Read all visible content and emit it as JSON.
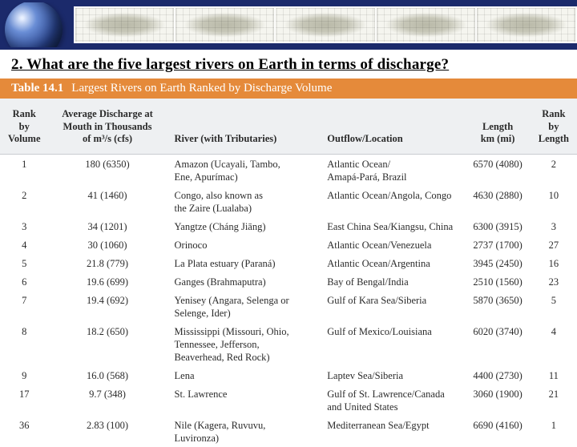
{
  "banner": {
    "map_panels": 5
  },
  "question": "2. What are the five largest rivers on Earth in terms of discharge?",
  "table": {
    "title_number": "Table 14.1",
    "title_text": "Largest Rivers on Earth Ranked by Discharge Volume",
    "title_bg": "#e58a3a",
    "title_color": "#ffffff",
    "header_bg": "#eef0f2",
    "body_bg": "#ffffff",
    "font_size": 12.5,
    "columns": [
      {
        "key": "rank_volume",
        "label": "Rank by\nVolume",
        "class": "c-vol"
      },
      {
        "key": "discharge",
        "label": "Average Discharge at\nMouth in Thousands\nof m³/s (cfs)",
        "class": "c-dis"
      },
      {
        "key": "river",
        "label": "River (with Tributaries)",
        "class": "c-riv"
      },
      {
        "key": "outflow",
        "label": "Outflow/Location",
        "class": "c-out"
      },
      {
        "key": "length",
        "label": "Length\nkm (mi)",
        "class": "c-len"
      },
      {
        "key": "rank_length",
        "label": "Rank by\nLength",
        "class": "c-rlen"
      }
    ],
    "rows": [
      {
        "rank_volume": "1",
        "discharge": "180 (6350)",
        "river": "Amazon (Ucayali, Tambo,\nEne, Apurímac)",
        "outflow": "Atlantic Ocean/\nAmapá-Pará, Brazil",
        "length": "6570 (4080)",
        "rank_length": "2"
      },
      {
        "rank_volume": "2",
        "discharge": "41 (1460)",
        "river": "Congo, also known as\nthe Zaire (Lualaba)",
        "outflow": "Atlantic Ocean/Angola, Congo",
        "length": "4630 (2880)",
        "rank_length": "10"
      },
      {
        "rank_volume": "3",
        "discharge": "34 (1201)",
        "river": "Yangtze (Cháng Jiāng)",
        "outflow": "East China Sea/Kiangsu, China",
        "length": "6300 (3915)",
        "rank_length": "3"
      },
      {
        "rank_volume": "4",
        "discharge": "30 (1060)",
        "river": "Orinoco",
        "outflow": "Atlantic Ocean/Venezuela",
        "length": "2737 (1700)",
        "rank_length": "27"
      },
      {
        "rank_volume": "5",
        "discharge": "21.8 (779)",
        "river": "La Plata estuary (Paraná)",
        "outflow": "Atlantic Ocean/Argentina",
        "length": "3945 (2450)",
        "rank_length": "16"
      },
      {
        "rank_volume": "6",
        "discharge": "19.6 (699)",
        "river": "Ganges (Brahmaputra)",
        "outflow": "Bay of Bengal/India",
        "length": "2510 (1560)",
        "rank_length": "23"
      },
      {
        "rank_volume": "7",
        "discharge": "19.4 (692)",
        "river": "Yenisey (Angara, Selenga or\nSelenge, Ider)",
        "outflow": "Gulf of Kara Sea/Siberia",
        "length": "5870 (3650)",
        "rank_length": "5"
      },
      {
        "rank_volume": "8",
        "discharge": "18.2 (650)",
        "river": "Mississippi (Missouri, Ohio,\nTennessee, Jefferson,\nBeaverhead, Red Rock)",
        "outflow": "Gulf of Mexico/Louisiana",
        "length": "6020 (3740)",
        "rank_length": "4"
      },
      {
        "rank_volume": "9",
        "discharge": "16.0 (568)",
        "river": "Lena",
        "outflow": "Laptev Sea/Siberia",
        "length": "4400 (2730)",
        "rank_length": "11"
      },
      {
        "rank_volume": "17",
        "discharge": "9.7 (348)",
        "river": "St. Lawrence",
        "outflow": "Gulf of St. Lawrence/Canada\nand United States",
        "length": "3060 (1900)",
        "rank_length": "21"
      },
      {
        "rank_volume": "36",
        "discharge": "2.83 (100)",
        "river": "Nile (Kagera, Ruvuvu,\nLuvironza)",
        "outflow": "Mediterranean Sea/Egypt",
        "length": "6690 (4160)",
        "rank_length": "1"
      }
    ]
  }
}
